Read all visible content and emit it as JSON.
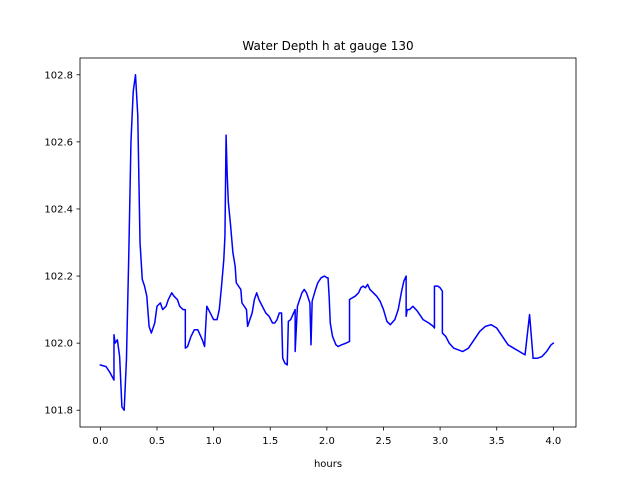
{
  "chart_data": {
    "type": "line",
    "title": "Water Depth h at gauge 130",
    "xlabel": "hours",
    "ylabel": "",
    "xlim": [
      -0.18,
      4.2
    ],
    "ylim": [
      101.75,
      102.85
    ],
    "xticks": [
      0.0,
      0.5,
      1.0,
      1.5,
      2.0,
      2.5,
      3.0,
      3.5,
      4.0
    ],
    "xtick_labels": [
      "0.0",
      "0.5",
      "1.0",
      "1.5",
      "2.0",
      "2.5",
      "3.0",
      "3.5",
      "4.0"
    ],
    "yticks": [
      101.8,
      102.0,
      102.2,
      102.4,
      102.6,
      102.8
    ],
    "ytick_labels": [
      "101.8",
      "102.0",
      "102.2",
      "102.4",
      "102.6",
      "102.8"
    ],
    "grid": false,
    "series": [
      {
        "name": "",
        "color": "#0000ff",
        "x": [
          0.0,
          0.05,
          0.08,
          0.12,
          0.12,
          0.13,
          0.15,
          0.17,
          0.19,
          0.21,
          0.23,
          0.25,
          0.27,
          0.29,
          0.31,
          0.33,
          0.35,
          0.37,
          0.39,
          0.41,
          0.43,
          0.45,
          0.48,
          0.5,
          0.53,
          0.55,
          0.58,
          0.6,
          0.63,
          0.65,
          0.68,
          0.7,
          0.73,
          0.75,
          0.75,
          0.77,
          0.8,
          0.83,
          0.86,
          0.9,
          0.92,
          0.94,
          0.97,
          1.0,
          1.03,
          1.05,
          1.07,
          1.09,
          1.1,
          1.11,
          1.12,
          1.13,
          1.15,
          1.17,
          1.19,
          1.2,
          1.22,
          1.24,
          1.25,
          1.27,
          1.29,
          1.3,
          1.32,
          1.34,
          1.36,
          1.38,
          1.4,
          1.43,
          1.46,
          1.49,
          1.52,
          1.54,
          1.56,
          1.58,
          1.6,
          1.61,
          1.63,
          1.65,
          1.66,
          1.68,
          1.72,
          1.72,
          1.74,
          1.78,
          1.8,
          1.82,
          1.85,
          1.86,
          1.87,
          1.9,
          1.92,
          1.95,
          1.98,
          2.0,
          2.01,
          2.02,
          2.03,
          2.05,
          2.08,
          2.1,
          2.13,
          2.17,
          2.2,
          2.2,
          2.25,
          2.28,
          2.3,
          2.32,
          2.34,
          2.36,
          2.38,
          2.41,
          2.44,
          2.47,
          2.5,
          2.53,
          2.56,
          2.6,
          2.63,
          2.66,
          2.68,
          2.7,
          2.7,
          2.71,
          2.73,
          2.76,
          2.8,
          2.85,
          2.9,
          2.94,
          2.95,
          2.95,
          2.98,
          3.0,
          3.02,
          3.02,
          3.05,
          3.08,
          3.12,
          3.16,
          3.2,
          3.25,
          3.3,
          3.35,
          3.4,
          3.45,
          3.5,
          3.55,
          3.6,
          3.65,
          3.7,
          3.75,
          3.79,
          3.79,
          3.82,
          3.82,
          3.86,
          3.9,
          3.94,
          3.98,
          4.0
        ],
        "y": [
          101.935,
          101.93,
          101.915,
          101.89,
          102.025,
          102.0,
          102.01,
          101.96,
          101.81,
          101.8,
          101.95,
          102.25,
          102.6,
          102.75,
          102.8,
          102.68,
          102.3,
          102.19,
          102.17,
          102.14,
          102.05,
          102.03,
          102.06,
          102.11,
          102.12,
          102.1,
          102.11,
          102.13,
          102.15,
          102.14,
          102.13,
          102.11,
          102.1,
          102.1,
          101.985,
          101.99,
          102.02,
          102.04,
          102.04,
          102.01,
          101.99,
          102.11,
          102.09,
          102.07,
          102.07,
          102.1,
          102.17,
          102.25,
          102.32,
          102.62,
          102.5,
          102.42,
          102.35,
          102.27,
          102.23,
          102.18,
          102.17,
          102.16,
          102.12,
          102.11,
          102.1,
          102.05,
          102.07,
          102.09,
          102.13,
          102.15,
          102.13,
          102.11,
          102.09,
          102.08,
          102.06,
          102.06,
          102.07,
          102.09,
          102.09,
          101.955,
          101.94,
          101.935,
          102.065,
          102.07,
          102.1,
          101.975,
          102.11,
          102.15,
          102.16,
          102.15,
          102.12,
          101.995,
          102.125,
          102.16,
          102.18,
          102.195,
          102.2,
          102.195,
          102.195,
          102.14,
          102.06,
          102.02,
          101.995,
          101.99,
          101.995,
          102.0,
          102.005,
          102.13,
          102.14,
          102.15,
          102.165,
          102.17,
          102.165,
          102.175,
          102.16,
          102.15,
          102.14,
          102.125,
          102.1,
          102.065,
          102.055,
          102.07,
          102.1,
          102.155,
          102.185,
          102.2,
          102.08,
          102.1,
          102.1,
          102.11,
          102.095,
          102.07,
          102.06,
          102.05,
          102.045,
          102.17,
          102.17,
          102.165,
          102.155,
          102.03,
          102.02,
          102.0,
          101.985,
          101.98,
          101.975,
          101.985,
          102.01,
          102.035,
          102.05,
          102.055,
          102.045,
          102.02,
          101.995,
          101.985,
          101.975,
          101.965,
          102.085,
          102.085,
          101.96,
          101.955,
          101.955,
          101.96,
          101.975,
          101.995,
          102.0
        ]
      }
    ]
  }
}
